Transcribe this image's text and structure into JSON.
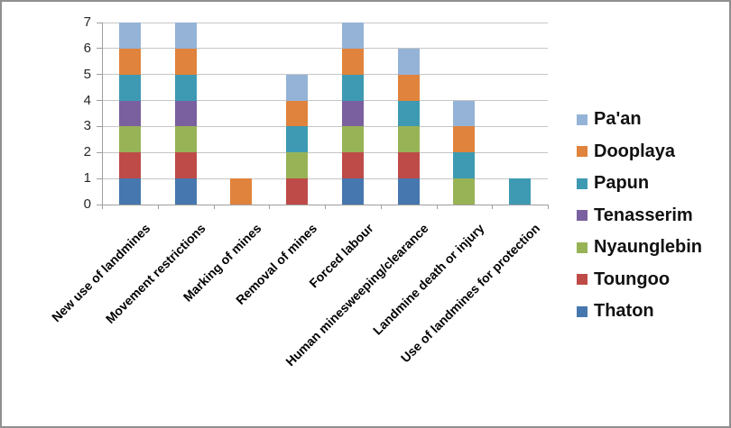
{
  "chart_data": {
    "type": "bar",
    "stacked": true,
    "title": "",
    "xlabel": "",
    "ylabel": "",
    "categories": [
      "New use of landmines",
      "Movement restrictions",
      "Marking of mines",
      "Removal of mines",
      "Forced labour",
      "Human minesweeping/clearance",
      "Landmine death or injury",
      "Use of landmines for protection"
    ],
    "series": [
      {
        "name": "Thaton",
        "color": "#4677AE",
        "values": [
          1,
          1,
          0,
          0,
          1,
          1,
          0,
          0
        ]
      },
      {
        "name": "Toungoo",
        "color": "#BE4B48",
        "values": [
          1,
          1,
          0,
          1,
          1,
          1,
          0,
          0
        ]
      },
      {
        "name": "Nyaunglebin",
        "color": "#98B356",
        "values": [
          1,
          1,
          0,
          1,
          1,
          1,
          1,
          0
        ]
      },
      {
        "name": "Tenasserim",
        "color": "#7A609E",
        "values": [
          1,
          1,
          0,
          0,
          1,
          0,
          0,
          0
        ]
      },
      {
        "name": "Papun",
        "color": "#3D9AB2",
        "values": [
          1,
          1,
          0,
          1,
          1,
          1,
          1,
          1
        ]
      },
      {
        "name": "Dooplaya",
        "color": "#E0833C",
        "values": [
          1,
          1,
          1,
          1,
          1,
          1,
          1,
          0
        ]
      },
      {
        "name": "Pa'an",
        "color": "#95B3D7",
        "values": [
          1,
          1,
          0,
          1,
          1,
          1,
          1,
          0
        ]
      }
    ],
    "totals_by_category": [
      7,
      7,
      1,
      5,
      7,
      6,
      4,
      1
    ],
    "y_axis": {
      "min": 0,
      "max": 7,
      "tick_interval": 1,
      "tick_labels": [
        "0",
        "1",
        "2",
        "3",
        "4",
        "5",
        "6",
        "7"
      ]
    },
    "grid": true,
    "legend": {
      "position": "right",
      "labels": [
        "Pa'an",
        "Dooplaya",
        "Papun",
        "Tenasserim",
        "Nyaunglebin",
        "Toungoo",
        "Thaton"
      ]
    }
  },
  "colors": {
    "gridline": "#C6C6C6",
    "axis": "#9E9E9E",
    "tick_text": "#262626",
    "label_text": "#000000",
    "frame_border": "#8F8F8F",
    "background": "#FFFFFF"
  }
}
